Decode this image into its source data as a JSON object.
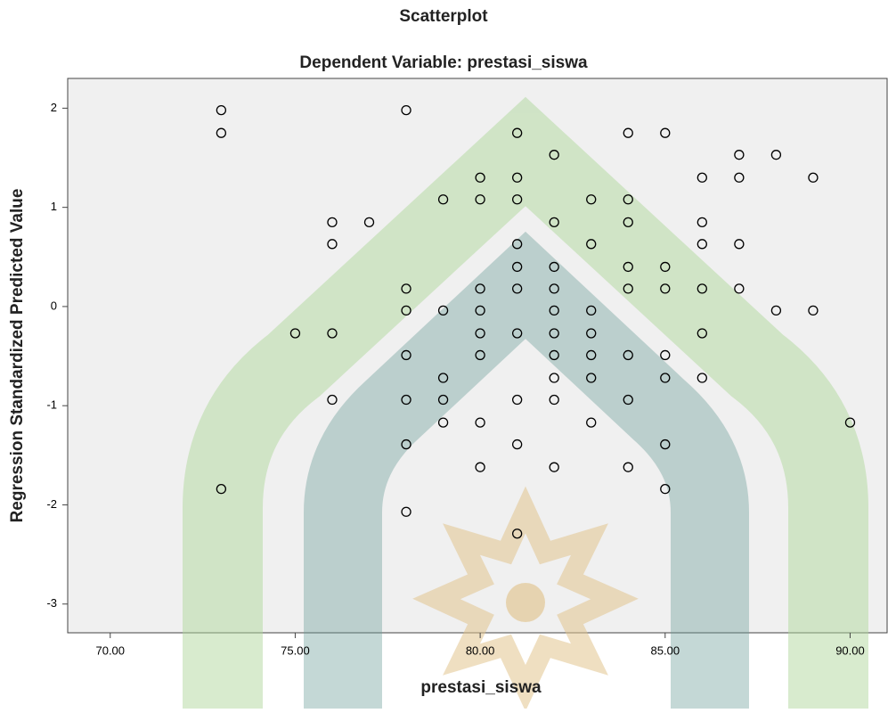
{
  "chart_data": {
    "type": "scatter",
    "title": "Scatterplot",
    "subtitle": "Dependent Variable: prestasi_siswa",
    "x_label": "prestasi_siswa",
    "y_label": "Regression Standardized Predicted Value",
    "x": [
      73,
      73,
      78,
      81,
      84,
      85,
      82,
      87,
      88,
      80,
      81,
      86,
      87,
      89,
      79,
      80,
      81,
      83,
      84,
      76,
      77,
      82,
      84,
      86,
      76,
      81,
      83,
      86,
      87,
      81,
      82,
      84,
      85,
      78,
      80,
      81,
      82,
      84,
      85,
      86,
      87,
      78,
      79,
      80,
      82,
      83,
      88,
      89,
      75,
      76,
      80,
      81,
      82,
      83,
      86,
      78,
      80,
      82,
      83,
      84,
      85,
      79,
      82,
      83,
      85,
      86,
      76,
      78,
      79,
      81,
      82,
      84,
      79,
      80,
      83,
      90,
      78,
      81,
      85,
      80,
      82,
      84,
      73,
      85,
      78,
      81
    ],
    "values": [
      1.98,
      1.75,
      1.98,
      1.75,
      1.75,
      1.75,
      1.53,
      1.53,
      1.53,
      1.3,
      1.3,
      1.3,
      1.3,
      1.3,
      1.08,
      1.08,
      1.08,
      1.08,
      1.08,
      0.85,
      0.85,
      0.85,
      0.85,
      0.85,
      0.63,
      0.63,
      0.63,
      0.63,
      0.63,
      0.4,
      0.4,
      0.4,
      0.4,
      0.18,
      0.18,
      0.18,
      0.18,
      0.18,
      0.18,
      0.18,
      0.18,
      -0.04,
      -0.04,
      -0.04,
      -0.04,
      -0.04,
      -0.04,
      -0.04,
      -0.27,
      -0.27,
      -0.27,
      -0.27,
      -0.27,
      -0.27,
      -0.27,
      -0.49,
      -0.49,
      -0.49,
      -0.49,
      -0.49,
      -0.49,
      -0.72,
      -0.72,
      -0.72,
      -0.72,
      -0.72,
      -0.94,
      -0.94,
      -0.94,
      -0.94,
      -0.94,
      -0.94,
      -1.17,
      -1.17,
      -1.17,
      -1.17,
      -1.39,
      -1.39,
      -1.39,
      -1.62,
      -1.62,
      -1.62,
      -1.84,
      -1.84,
      -2.07,
      -2.29
    ],
    "color": "#000000",
    "xlim": [
      68.85,
      91.0
    ],
    "xticks": [
      {
        "value": 70,
        "label": "70.00"
      },
      {
        "value": 75,
        "label": "75.00"
      },
      {
        "value": 80,
        "label": "80.00"
      },
      {
        "value": 85,
        "label": "85.00"
      },
      {
        "value": 90,
        "label": "90.00"
      }
    ],
    "ylim": [
      -3.29,
      2.3
    ],
    "yticks": [
      2,
      1,
      0,
      -1,
      -2,
      -3
    ],
    "grid": false
  }
}
